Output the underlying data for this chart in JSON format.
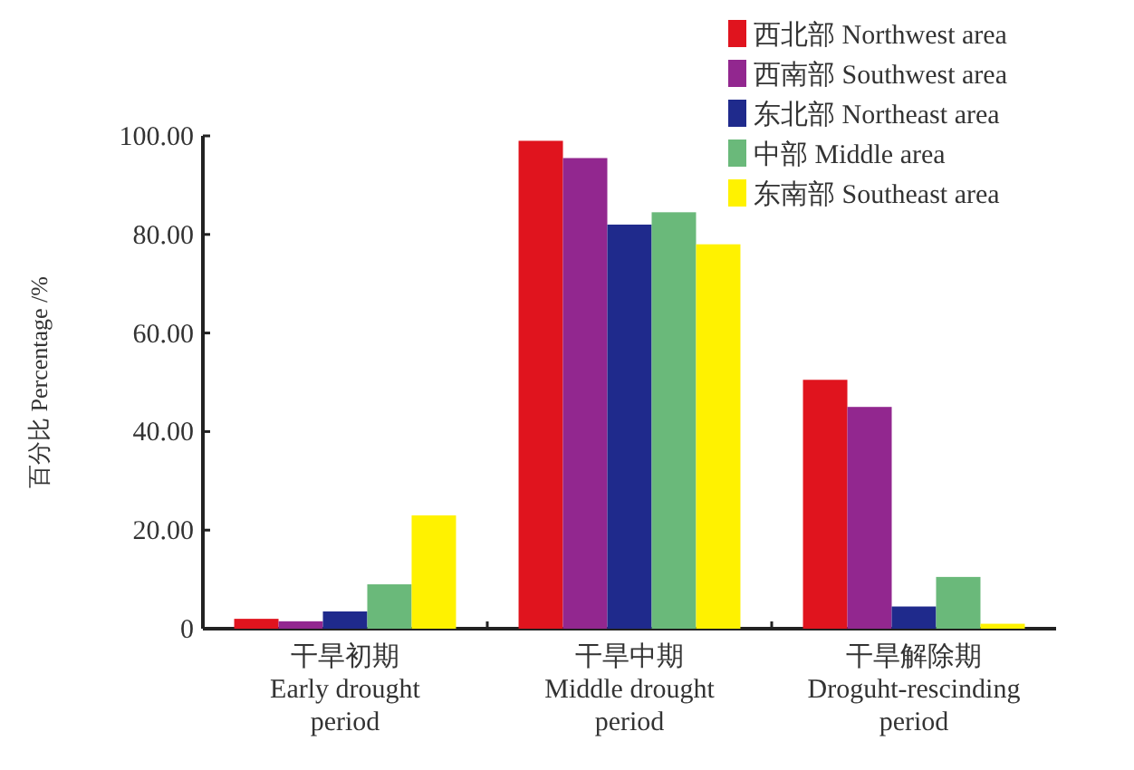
{
  "chart_data": {
    "type": "bar",
    "ylabel": "百分比 Percentage /%",
    "categories": [
      "干旱初期\nEarly drought\nperiod",
      "干旱中期\nMiddle drought\nperiod",
      "干旱解除期\nDroguht-rescinding\nperiod"
    ],
    "series": [
      {
        "name": "西北部 Northwest area",
        "color": "#e0141e",
        "values": [
          2,
          99,
          50.5
        ]
      },
      {
        "name": "西南部 Southwest area",
        "color": "#92278f",
        "values": [
          1.5,
          95.5,
          45
        ]
      },
      {
        "name": "东北部 Northeast area",
        "color": "#1f2a8c",
        "values": [
          3.5,
          82,
          4.5
        ]
      },
      {
        "name": "中部 Middle area",
        "color": "#6ab97a",
        "values": [
          9,
          84.5,
          10.5
        ]
      },
      {
        "name": "东南部 Southeast area",
        "color": "#fff200",
        "values": [
          23,
          78,
          1
        ]
      }
    ],
    "ylim": [
      0,
      100
    ],
    "yticks": [
      0,
      {
        "value": 20,
        "label": "20.00"
      },
      {
        "value": 40,
        "label": "40.00"
      },
      {
        "value": 60,
        "label": "60.00"
      },
      {
        "value": 80,
        "label": "80.00"
      },
      {
        "value": 100,
        "label": "100.00"
      }
    ],
    "legend": "top right"
  }
}
